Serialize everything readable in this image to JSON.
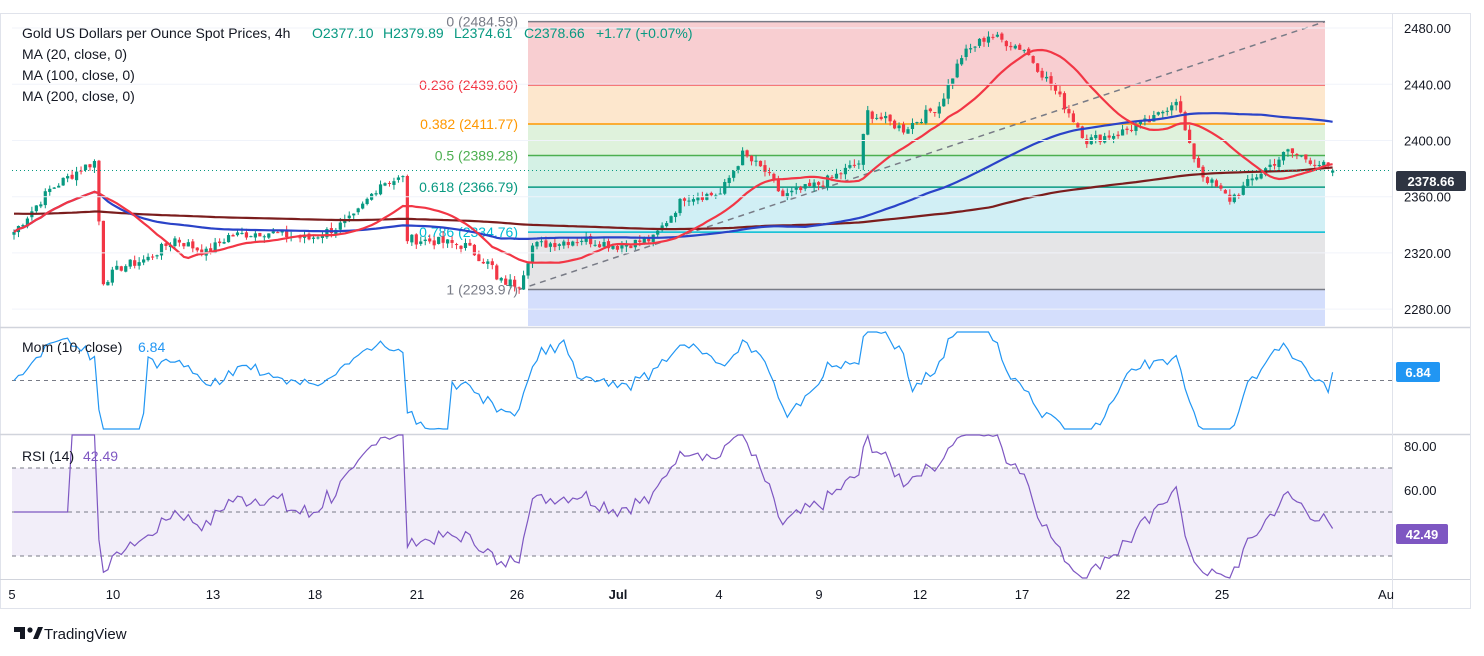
{
  "header": {
    "title": "Gold US Dollars per Ounce Spot Prices, 4h",
    "open": "O2377.10",
    "high": "H2379.89",
    "low": "L2374.61",
    "close": "C2378.66",
    "change": "+1.77 (+0.07%)",
    "ma_labels": [
      "MA (20, close, 0)",
      "MA (100, close, 0)",
      "MA (200, close, 0)"
    ]
  },
  "price_panel": {
    "last_price": "2378.66",
    "y_ticks": [
      "2480.00",
      "2440.00",
      "2400.00",
      "2360.00",
      "2320.00",
      "2280.00"
    ],
    "y_tick_values": [
      2480,
      2440,
      2400,
      2360,
      2320,
      2280
    ],
    "ylim": [
      2268,
      2490
    ],
    "fib_levels": [
      {
        "label": "0 (2484.59)",
        "value": 2484.59,
        "line_color": "#787b86",
        "zone_color": "#f7c6c9"
      },
      {
        "label": "0.236 (2439.60)",
        "value": 2439.6,
        "line_color": "#f23645",
        "zone_color": "#fde3c4"
      },
      {
        "label": "0.382 (2411.77)",
        "value": 2411.77,
        "line_color": "#ff9800",
        "zone_color": "#d9f0d6"
      },
      {
        "label": "0.5 (2389.28)",
        "value": 2389.28,
        "line_color": "#4caf50",
        "zone_color": "#cdeee0"
      },
      {
        "label": "0.618 (2366.79)",
        "value": 2366.79,
        "line_color": "#089981",
        "zone_color": "#c9ecf3"
      },
      {
        "label": "0.786 (2334.76)",
        "value": 2334.76,
        "line_color": "#00bcd4",
        "zone_color": "#e1e1e3"
      },
      {
        "label": "1 (2293.97)",
        "value": 2293.97,
        "line_color": "#787b86",
        "zone_color": "#cdd8fb"
      }
    ]
  },
  "momentum_panel": {
    "label": "Mom (10, close)",
    "value_label": "6.84",
    "last_value": "6.84"
  },
  "rsi_panel": {
    "label": "RSI (14)",
    "value_label": "42.49",
    "last_value": "42.49",
    "y_ticks": [
      "80.00",
      "60.00"
    ],
    "y_tick_values": [
      80,
      60
    ],
    "bands": [
      70,
      50,
      30
    ]
  },
  "x_axis": {
    "labels": [
      "5",
      "10",
      "13",
      "18",
      "21",
      "26",
      "Jul",
      "4",
      "9",
      "12",
      "17",
      "22",
      "25",
      "Au"
    ]
  },
  "branding": {
    "logo_text": "TradingView"
  },
  "colors": {
    "bull": "#089981",
    "bear": "#f23645",
    "ma20": "#f23645",
    "ma100": "#2a43c8",
    "ma200": "#7b1d1d",
    "mom": "#2196f3",
    "rsi": "#7e57c2",
    "last_tag": "#2e3442"
  },
  "chart_data": {
    "type": "candlestick",
    "timeframe": "4h",
    "instrument": "XAU/USD",
    "x_range": [
      "Jun 5",
      "Jul 29"
    ],
    "ohlc_last": {
      "open": 2377.1,
      "high": 2379.89,
      "low": 2374.61,
      "close": 2378.66
    },
    "anchors": [
      {
        "x": 0,
        "price": 2335
      },
      {
        "x": 8,
        "price": 2365
      },
      {
        "x": 15,
        "price": 2380
      },
      {
        "x": 18,
        "price": 2385
      },
      {
        "x": 20,
        "price": 2300
      },
      {
        "x": 24,
        "price": 2310
      },
      {
        "x": 30,
        "price": 2316
      },
      {
        "x": 36,
        "price": 2330
      },
      {
        "x": 43,
        "price": 2320
      },
      {
        "x": 48,
        "price": 2332
      },
      {
        "x": 56,
        "price": 2335
      },
      {
        "x": 66,
        "price": 2330
      },
      {
        "x": 72,
        "price": 2338
      },
      {
        "x": 76,
        "price": 2345
      },
      {
        "x": 82,
        "price": 2370
      },
      {
        "x": 87,
        "price": 2373
      },
      {
        "x": 88,
        "price": 2330
      },
      {
        "x": 95,
        "price": 2328
      },
      {
        "x": 101,
        "price": 2325
      },
      {
        "x": 107,
        "price": 2310
      },
      {
        "x": 108,
        "price": 2300
      },
      {
        "x": 113,
        "price": 2298
      },
      {
        "x": 116,
        "price": 2325
      },
      {
        "x": 127,
        "price": 2330
      },
      {
        "x": 135,
        "price": 2325
      },
      {
        "x": 143,
        "price": 2330
      },
      {
        "x": 150,
        "price": 2360
      },
      {
        "x": 158,
        "price": 2362
      },
      {
        "x": 163,
        "price": 2390
      },
      {
        "x": 168,
        "price": 2378
      },
      {
        "x": 172,
        "price": 2360
      },
      {
        "x": 181,
        "price": 2370
      },
      {
        "x": 189,
        "price": 2384
      },
      {
        "x": 191,
        "price": 2420
      },
      {
        "x": 199,
        "price": 2408
      },
      {
        "x": 207,
        "price": 2425
      },
      {
        "x": 212,
        "price": 2460
      },
      {
        "x": 218,
        "price": 2475
      },
      {
        "x": 226,
        "price": 2465
      },
      {
        "x": 233,
        "price": 2435
      },
      {
        "x": 240,
        "price": 2400
      },
      {
        "x": 247,
        "price": 2405
      },
      {
        "x": 255,
        "price": 2415
      },
      {
        "x": 260,
        "price": 2430
      },
      {
        "x": 263,
        "price": 2395
      },
      {
        "x": 266,
        "price": 2375
      },
      {
        "x": 272,
        "price": 2358
      },
      {
        "x": 278,
        "price": 2375
      },
      {
        "x": 285,
        "price": 2392
      },
      {
        "x": 291,
        "price": 2385
      },
      {
        "x": 295,
        "price": 2378.66
      }
    ],
    "momentum": {
      "last": 6.84,
      "ylim": [
        -40,
        40
      ]
    },
    "rsi": {
      "last": 42.49,
      "ylim": [
        20,
        85
      ]
    },
    "fib_retracement": [
      2484.59,
      2439.6,
      2411.77,
      2389.28,
      2366.79,
      2334.76,
      2293.97
    ]
  }
}
